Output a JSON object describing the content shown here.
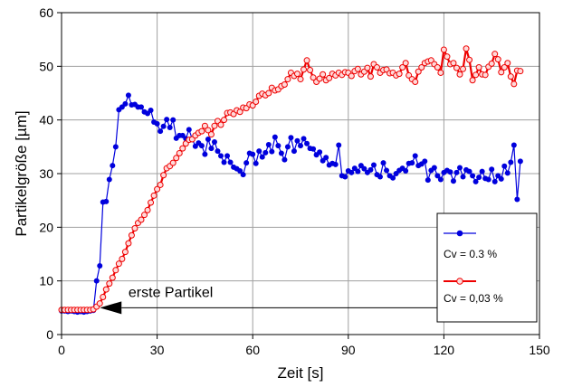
{
  "chart_data": {
    "type": "line",
    "xlabel": "Zeit  [s]",
    "ylabel": "Partikelgröße [µm]",
    "xlim": [
      0,
      150
    ],
    "ylim": [
      0,
      60
    ],
    "xticks": [
      "0",
      "30",
      "60",
      "90",
      "120",
      "150"
    ],
    "yticks": [
      "0",
      "10",
      "20",
      "30",
      "40",
      "50",
      "60"
    ],
    "grid": true,
    "legend_position": "bottom-right",
    "annotation": {
      "text": "erste Partikel",
      "arrow_from": [
        145,
        5
      ],
      "arrow_to": [
        12,
        5
      ]
    },
    "colors": {
      "series1": "#0000dd",
      "series2": "#ee0000"
    },
    "series": [
      {
        "name": "Cv = 0.3 %",
        "x": [
          0,
          1,
          2,
          3,
          4,
          5,
          6,
          7,
          8,
          9,
          10,
          11,
          12,
          13,
          14,
          15,
          16,
          17,
          18,
          19,
          20,
          21,
          22,
          23,
          24,
          25,
          26,
          27,
          28,
          29,
          30,
          31,
          32,
          33,
          34,
          35,
          36,
          37,
          38,
          39,
          40,
          41,
          42,
          43,
          44,
          45,
          46,
          47,
          48,
          49,
          50,
          51,
          52,
          53,
          54,
          55,
          56,
          57,
          58,
          59,
          60,
          61,
          62,
          63,
          64,
          65,
          66,
          67,
          68,
          69,
          70,
          71,
          72,
          73,
          74,
          75,
          76,
          77,
          78,
          79,
          80,
          81,
          82,
          83,
          84,
          85,
          86,
          87,
          88,
          89,
          90,
          91,
          92,
          93,
          94,
          95,
          96,
          97,
          98,
          99,
          100,
          101,
          102,
          103,
          104,
          105,
          106,
          107,
          108,
          109,
          110,
          111,
          112,
          113,
          114,
          115,
          116,
          117,
          118,
          119,
          120,
          121,
          122,
          123,
          124,
          125,
          126,
          127,
          128,
          129,
          130,
          131,
          132,
          133,
          134,
          135,
          136,
          137,
          138,
          139,
          140,
          141,
          142,
          143,
          144
        ],
        "values": [
          4.4,
          4.4,
          4.3,
          4.4,
          4.3,
          4.2,
          4.3,
          4.2,
          4.3,
          4.4,
          4.5,
          10,
          12.8,
          24.7,
          24.8,
          28.9,
          31.5,
          35,
          41.9,
          42.4,
          43,
          44.6,
          42.8,
          42.9,
          42.4,
          42.4,
          41.5,
          41.2,
          41.8,
          39.6,
          39.3,
          37.9,
          38.8,
          40.1,
          38.6,
          40,
          36.6,
          37.1,
          37.1,
          36.5,
          38.2,
          36.5,
          35.1,
          35.7,
          35.2,
          33.6,
          36.4,
          34.7,
          35.9,
          34.2,
          33.3,
          32.1,
          33.3,
          32.1,
          31.2,
          30.9,
          30.5,
          29.8,
          32,
          33.8,
          33.6,
          31.9,
          34.2,
          33.1,
          33.9,
          35.4,
          34.1,
          36.8,
          35.2,
          33.8,
          32.6,
          35,
          36.7,
          34.2,
          36.1,
          35.2,
          36.5,
          35.6,
          34.7,
          34.6,
          33.5,
          34,
          32.4,
          33,
          31.6,
          31.9,
          31.7,
          35.3,
          29.6,
          29.4,
          30.5,
          30.2,
          31,
          30.4,
          31.5,
          30.9,
          30.2,
          30.7,
          31.6,
          29.8,
          29.4,
          32,
          30.6,
          29.6,
          29.2,
          30,
          30.6,
          31,
          30.5,
          31.9,
          32,
          33.3,
          31.5,
          31.8,
          32.3,
          28.8,
          30.6,
          31.1,
          29.6,
          28.9,
          30.2,
          30.6,
          30.3,
          28.6,
          30.2,
          31.1,
          29.4,
          30.7,
          30.4,
          29.6,
          28.5,
          29.3,
          30.4,
          29.1,
          28.9,
          30.8,
          28.5,
          29.6,
          29,
          31.4,
          30.1,
          32.1,
          35.3,
          25.2,
          32.3
        ],
        "marker": "filled-circle"
      },
      {
        "name": "Cv = 0,03 %",
        "x": [
          0,
          1,
          2,
          3,
          4,
          5,
          6,
          7,
          8,
          9,
          10,
          11,
          12,
          13,
          14,
          15,
          16,
          17,
          18,
          19,
          20,
          21,
          22,
          23,
          24,
          25,
          26,
          27,
          28,
          29,
          30,
          31,
          32,
          33,
          34,
          35,
          36,
          37,
          38,
          39,
          40,
          41,
          42,
          43,
          44,
          45,
          46,
          47,
          48,
          49,
          50,
          51,
          52,
          53,
          54,
          55,
          56,
          57,
          58,
          59,
          60,
          61,
          62,
          63,
          64,
          65,
          66,
          67,
          68,
          69,
          70,
          71,
          72,
          73,
          74,
          75,
          76,
          77,
          78,
          79,
          80,
          81,
          82,
          83,
          84,
          85,
          86,
          87,
          88,
          89,
          90,
          91,
          92,
          93,
          94,
          95,
          96,
          97,
          98,
          99,
          100,
          101,
          102,
          103,
          104,
          105,
          106,
          107,
          108,
          109,
          110,
          111,
          112,
          113,
          114,
          115,
          116,
          117,
          118,
          119,
          120,
          121,
          122,
          123,
          124,
          125,
          126,
          127,
          128,
          129,
          130,
          131,
          132,
          133,
          134,
          135,
          136,
          137,
          138,
          139,
          140,
          141,
          142,
          143,
          144
        ],
        "values": [
          4.6,
          4.6,
          4.6,
          4.6,
          4.6,
          4.6,
          4.6,
          4.6,
          4.6,
          4.6,
          4.7,
          5.2,
          5.8,
          7,
          8.4,
          9.5,
          10.6,
          12,
          13.2,
          14.1,
          15.4,
          17,
          18.5,
          19.8,
          20.8,
          21.4,
          22.3,
          23.2,
          24.6,
          25.9,
          27.1,
          27.9,
          29.7,
          31,
          31.4,
          32,
          32.9,
          33.8,
          34.7,
          35.6,
          36.3,
          36.4,
          37.1,
          37.6,
          37.9,
          38.9,
          38.1,
          37.3,
          38.9,
          39.8,
          39.1,
          40,
          41.3,
          41.4,
          41.1,
          41.8,
          41.5,
          42.3,
          42.2,
          42.9,
          42.7,
          43.4,
          44.5,
          44.9,
          44.6,
          45,
          46,
          45.5,
          45.7,
          46.3,
          46.6,
          47.6,
          48.8,
          48.2,
          48.6,
          47.6,
          49.4,
          51.1,
          49.3,
          47.9,
          47.1,
          47.7,
          48.5,
          47.4,
          47.8,
          48.6,
          48.3,
          48.8,
          48.4,
          48.9,
          48.8,
          48.2,
          49.1,
          49.5,
          48.5,
          49,
          49.7,
          48.1,
          50.4,
          49.8,
          48.8,
          49.3,
          49.4,
          48.7,
          48.8,
          48.3,
          48.6,
          49.8,
          50.6,
          48.3,
          47.6,
          47.1,
          49,
          49.8,
          50.6,
          50.9,
          51.1,
          50.4,
          49.8,
          48.8,
          53.1,
          51.8,
          50.4,
          50.6,
          49.7,
          48.5,
          49.5,
          53.3,
          51.2,
          47.4,
          48.4,
          49.8,
          48.5,
          48.4,
          49.9,
          50.5,
          52.3,
          51.3,
          48.9,
          49.8,
          50.6,
          48.1,
          46.7,
          49.2,
          49.1
        ],
        "marker": "open-circle"
      }
    ]
  }
}
